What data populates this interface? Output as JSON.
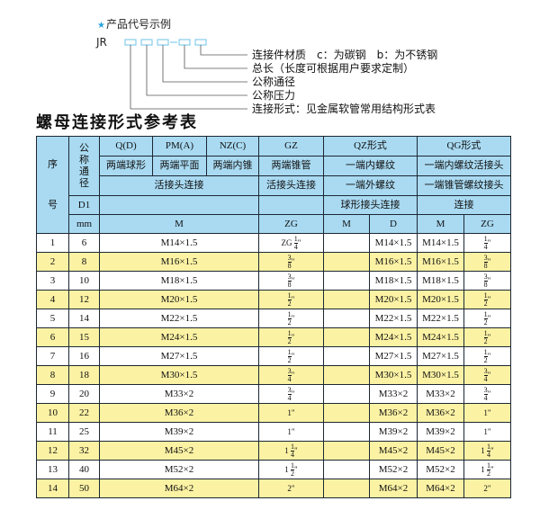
{
  "legend": {
    "title": "产品代号示例",
    "star_icon": "star-icon",
    "code_prefix": "JR",
    "code_dash": "-",
    "labels": [
      "连接件材质　c：为碳钢　b：为不锈钢",
      "总长（长度可根据用户要求定制）",
      "公称通径",
      "公称压力",
      "连接形式：见金属软管常用结构形式表"
    ]
  },
  "title": "螺母连接形式参考表",
  "colors": {
    "header_bg": "#a9daf2",
    "alt_row": "#fbf2a4",
    "border": "#1c2733",
    "accent": "#29a3dd"
  },
  "header": {
    "seq_top": "序",
    "seq_bottom": "号",
    "dn": "公称通径",
    "types": [
      "Q(D)",
      "PM(A)",
      "NZ(C)",
      "GZ",
      "QZ形式",
      "QG形式"
    ],
    "descs": [
      "两端球形",
      "两端平面",
      "两端内锥",
      "两端锥管",
      "一端内螺纹",
      "一端内螺纹活接头"
    ],
    "conn1": "活接头连接",
    "conn2": "活接头连接",
    "conn3": "一端外螺纹",
    "conn4": "一端锥管螺纹接头",
    "d1": "D1",
    "qz_conn": "球形接头连接",
    "qg_conn": "连接",
    "unit": "mm",
    "sub": [
      "M",
      "ZG",
      "M",
      "D",
      "M",
      "ZG"
    ]
  },
  "rows": [
    {
      "no": "1",
      "d1": "6",
      "m": "M14×1.5",
      "zg": {
        "pre": "ZG ",
        "num": "1",
        "den": "4",
        "suf": "\""
      },
      "qz_m": "",
      "qz_d": "M14×1.5",
      "qg_m": "M14×1.5",
      "qg_zg": {
        "pre": "",
        "num": "1",
        "den": "4",
        "suf": "\""
      }
    },
    {
      "no": "2",
      "d1": "8",
      "m": "M16×1.5",
      "zg": {
        "pre": "",
        "num": "3",
        "den": "8",
        "suf": "\""
      },
      "qz_m": "",
      "qz_d": "M16×1.5",
      "qg_m": "M16×1.5",
      "qg_zg": {
        "pre": "",
        "num": "3",
        "den": "8",
        "suf": "\""
      }
    },
    {
      "no": "3",
      "d1": "10",
      "m": "M18×1.5",
      "zg": {
        "pre": "",
        "num": "3",
        "den": "8",
        "suf": "\""
      },
      "qz_m": "",
      "qz_d": "M18×1.5",
      "qg_m": "M18×1.5",
      "qg_zg": {
        "pre": "",
        "num": "3",
        "den": "8",
        "suf": "\""
      }
    },
    {
      "no": "4",
      "d1": "12",
      "m": "M20×1.5",
      "zg": {
        "pre": "",
        "num": "1",
        "den": "2",
        "suf": "\""
      },
      "qz_m": "",
      "qz_d": "M20×1.5",
      "qg_m": "M20×1.5",
      "qg_zg": {
        "pre": "",
        "num": "1",
        "den": "2",
        "suf": "\""
      }
    },
    {
      "no": "5",
      "d1": "14",
      "m": "M22×1.5",
      "zg": {
        "pre": "",
        "num": "1",
        "den": "2",
        "suf": "\""
      },
      "qz_m": "",
      "qz_d": "M22×1.5",
      "qg_m": "M22×1.5",
      "qg_zg": {
        "pre": "",
        "num": "1",
        "den": "2",
        "suf": "\""
      }
    },
    {
      "no": "6",
      "d1": "15",
      "m": "M24×1.5",
      "zg": {
        "pre": "",
        "num": "1",
        "den": "2",
        "suf": "\""
      },
      "qz_m": "",
      "qz_d": "M24×1.5",
      "qg_m": "M24×1.5",
      "qg_zg": {
        "pre": "",
        "num": "1",
        "den": "2",
        "suf": "\""
      }
    },
    {
      "no": "7",
      "d1": "16",
      "m": "M27×1.5",
      "zg": {
        "pre": "",
        "num": "1",
        "den": "2",
        "suf": "\""
      },
      "qz_m": "",
      "qz_d": "M27×1.5",
      "qg_m": "M27×1.5",
      "qg_zg": {
        "pre": "",
        "num": "1",
        "den": "2",
        "suf": "\""
      }
    },
    {
      "no": "8",
      "d1": "18",
      "m": "M30×1.5",
      "zg": {
        "pre": "",
        "num": "3",
        "den": "4",
        "suf": "\""
      },
      "qz_m": "",
      "qz_d": "M30×1.5",
      "qg_m": "M30×1.5",
      "qg_zg": {
        "pre": "",
        "num": "3",
        "den": "4",
        "suf": "\""
      }
    },
    {
      "no": "9",
      "d1": "20",
      "m": "M33×2",
      "zg": {
        "pre": "",
        "num": "3",
        "den": "4",
        "suf": "\""
      },
      "qz_m": "",
      "qz_d": "M33×2",
      "qg_m": "M33×2",
      "qg_zg": {
        "pre": "",
        "num": "3",
        "den": "4",
        "suf": "\""
      }
    },
    {
      "no": "10",
      "d1": "22",
      "m": "M36×2",
      "zg": {
        "pre": "1",
        "num": "",
        "den": "",
        "suf": "\""
      },
      "qz_m": "",
      "qz_d": "M36×2",
      "qg_m": "M36×2",
      "qg_zg": {
        "pre": "1",
        "num": "",
        "den": "",
        "suf": "\""
      }
    },
    {
      "no": "11",
      "d1": "25",
      "m": "M39×2",
      "zg": {
        "pre": "1",
        "num": "",
        "den": "",
        "suf": "\""
      },
      "qz_m": "",
      "qz_d": "M39×2",
      "qg_m": "M39×2",
      "qg_zg": {
        "pre": "1",
        "num": "",
        "den": "",
        "suf": "\""
      }
    },
    {
      "no": "12",
      "d1": "32",
      "m": "M45×2",
      "zg": {
        "pre": "1 ",
        "num": "1",
        "den": "4",
        "suf": "\""
      },
      "qz_m": "",
      "qz_d": "M45×2",
      "qg_m": "M45×2",
      "qg_zg": {
        "pre": "1 ",
        "num": "1",
        "den": "4",
        "suf": "\""
      }
    },
    {
      "no": "13",
      "d1": "40",
      "m": "M52×2",
      "zg": {
        "pre": "1 ",
        "num": "1",
        "den": "2",
        "suf": "\""
      },
      "qz_m": "",
      "qz_d": "M52×2",
      "qg_m": "M52×2",
      "qg_zg": {
        "pre": "1 ",
        "num": "1",
        "den": "2",
        "suf": "\""
      }
    },
    {
      "no": "14",
      "d1": "50",
      "m": "M64×2",
      "zg": {
        "pre": "2",
        "num": "",
        "den": "",
        "suf": "\""
      },
      "qz_m": "",
      "qz_d": "M64×2",
      "qg_m": "M64×2",
      "qg_zg": {
        "pre": "2",
        "num": "",
        "den": "",
        "suf": "\""
      }
    }
  ]
}
